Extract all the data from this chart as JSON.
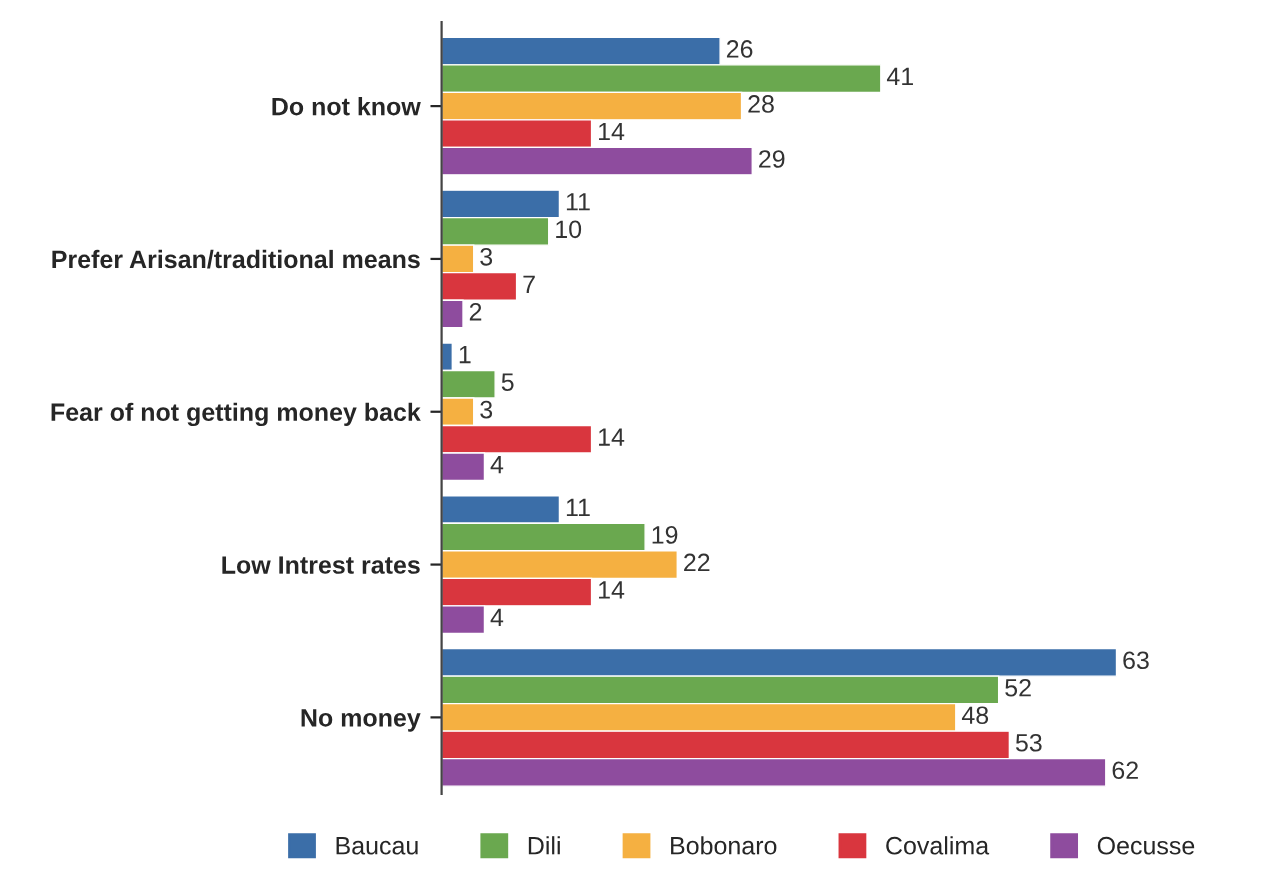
{
  "chart_data": {
    "type": "bar",
    "orientation": "horizontal",
    "categories": [
      "Do not know",
      "Prefer Arisan/traditional means",
      "Fear of not getting money back",
      "Low Intrest rates",
      "No money"
    ],
    "series": [
      {
        "name": "Baucau",
        "color": "#3b6ea8",
        "values": [
          26,
          11,
          1,
          11,
          63
        ]
      },
      {
        "name": "Dili",
        "color": "#6aa84f",
        "values": [
          41,
          10,
          5,
          19,
          52
        ]
      },
      {
        "name": "Bobonaro",
        "color": "#f5b041",
        "values": [
          28,
          3,
          3,
          22,
          48
        ]
      },
      {
        "name": "Covalima",
        "color": "#d9363e",
        "values": [
          14,
          7,
          14,
          14,
          53
        ]
      },
      {
        "name": "Oecusse",
        "color": "#8e4c9e",
        "values": [
          29,
          2,
          4,
          4,
          62
        ]
      }
    ],
    "tick_labels": "y",
    "data_labels": true,
    "grid": false,
    "legend": "bottom"
  }
}
